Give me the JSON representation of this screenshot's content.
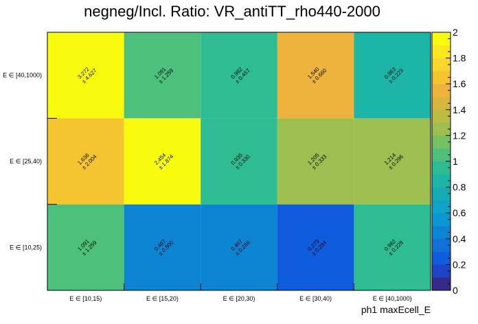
{
  "chart_data": {
    "type": "heatmap",
    "title": "negneg/Incl. Ratio: VR_antiTT_rho440-2000",
    "xlabel": "ph1 maxEcell_E",
    "ylabel": "",
    "x_categories": [
      "E ∈ [10,15)",
      "E ∈ [15,20)",
      "E ∈ [20,30)",
      "E ∈ [30,40)",
      "E ∈ [40,1000)"
    ],
    "y_categories": [
      "E ∈ [10,25)",
      "E ∈ [25,40)",
      "E ∈ [40,1000)"
    ],
    "values": [
      [
        1.091,
        0.467,
        0.467,
        0.273,
        0.982
      ],
      [
        1.636,
        2.454,
        0.935,
        1.205,
        1.214
      ],
      [
        3.272,
        1.091,
        0.982,
        1.54,
        0.863
      ]
    ],
    "errors": [
      [
        1.259,
        0.5,
        0.288,
        0.284,
        0.228
      ],
      [
        2.004,
        1.874,
        0.33,
        0.333,
        0.296
      ],
      [
        4.627,
        1.259,
        0.457,
        0.66,
        0.223
      ]
    ],
    "value_labels": [
      [
        "1.091",
        "0.467",
        "0.467",
        "0.273",
        "0.982"
      ],
      [
        "1.636",
        "2.454",
        "0.935",
        "1.205",
        "1.214"
      ],
      [
        "3.272",
        "1.091",
        "0.982",
        "1.540",
        "0.863"
      ]
    ],
    "error_labels": [
      [
        "± 1.259",
        "± 0.500",
        "± 0.288",
        "± 0.284",
        "± 0.228"
      ],
      [
        "± 2.004",
        "± 1.874",
        "± 0.330",
        "± 0.333",
        "± 0.296"
      ],
      [
        "± 4.627",
        "± 1.259",
        "± 0.457",
        "± 0.660",
        "± 0.223"
      ]
    ],
    "zlim": [
      0,
      2
    ],
    "colorbar_ticks": [
      "0",
      "0.2",
      "0.4",
      "0.6",
      "0.8",
      "1",
      "1.2",
      "1.4",
      "1.6",
      "1.8",
      "2"
    ],
    "colormap": [
      "#352a87",
      "#1d46c4",
      "#0f5cdd",
      "#1170d7",
      "#0d84d2",
      "#0997d1",
      "#0ea3c7",
      "#16acb6",
      "#1cb5a7",
      "#2ebd93",
      "#4dc17c",
      "#77c061",
      "#9cbf4f",
      "#bcbc45",
      "#d7b63e",
      "#edb33c",
      "#f5c431",
      "#f8d62d",
      "#fbe720",
      "#f9fb0e"
    ]
  }
}
